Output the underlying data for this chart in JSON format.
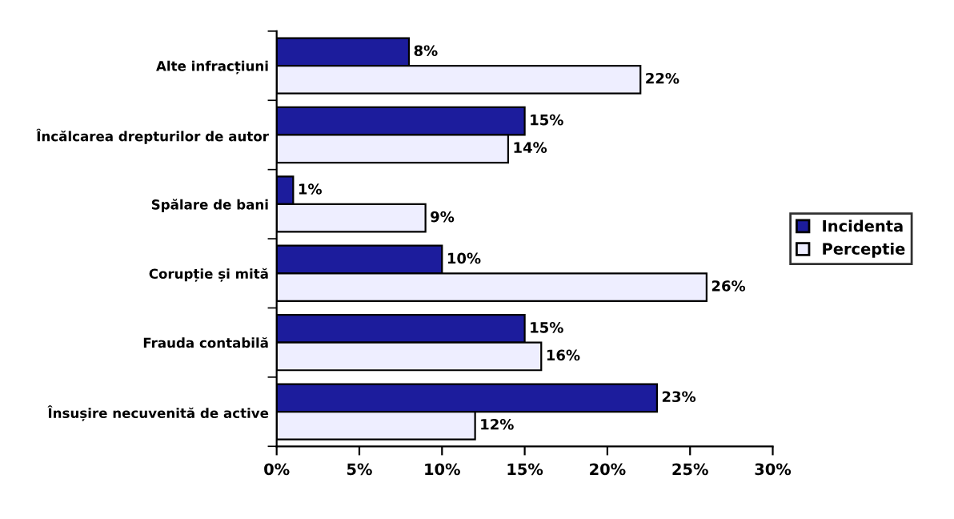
{
  "chart_data": {
    "type": "bar",
    "orientation": "horizontal",
    "categories": [
      "Alte infracțiuni",
      "Încălcarea drepturilor de autor",
      "Spălare de bani",
      "Corupție și mită",
      "Frauda contabilă",
      "Însușire necuvenită de active"
    ],
    "series": [
      {
        "name": "Incidenta",
        "color": "#1c1c9c",
        "values": [
          8,
          15,
          1,
          10,
          15,
          23
        ],
        "value_labels": [
          "8%",
          "15%",
          "1%",
          "10%",
          "15%",
          "23%"
        ]
      },
      {
        "name": "Perceptie",
        "color": "#eeeeff",
        "values": [
          22,
          14,
          9,
          26,
          16,
          12
        ],
        "value_labels": [
          "22%",
          "14%",
          "9%",
          "26%",
          "16%",
          "12%"
        ]
      }
    ],
    "xlim": [
      0,
      30
    ],
    "xticks": [
      {
        "value": 0,
        "label": "0%"
      },
      {
        "value": 5,
        "label": "5%"
      },
      {
        "value": 10,
        "label": "10%"
      },
      {
        "value": 15,
        "label": "15%"
      },
      {
        "value": 20,
        "label": "20%"
      },
      {
        "value": 25,
        "label": "25%"
      },
      {
        "value": 30,
        "label": "30%"
      }
    ],
    "grid": false,
    "legend": "right"
  }
}
